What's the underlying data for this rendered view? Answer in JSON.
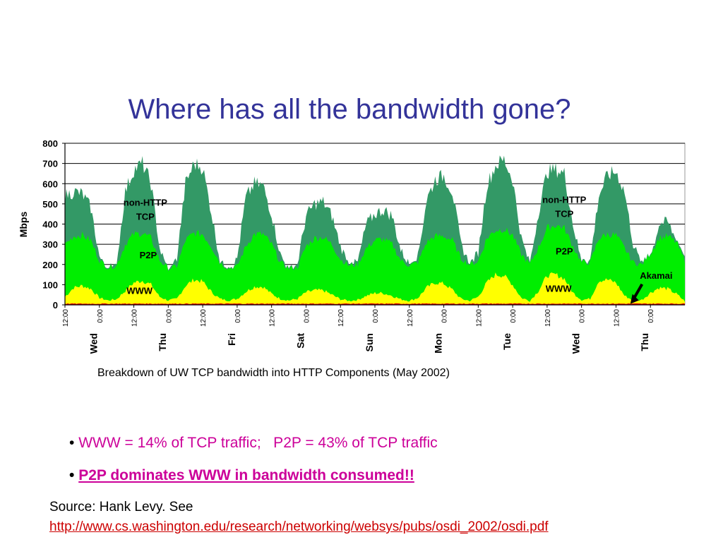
{
  "slide": {
    "title": "Where has all the bandwidth gone?",
    "caption": "Breakdown of UW TCP bandwidth into HTTP Components (May 2002)",
    "bullets": [
      "WWW = 14% of TCP traffic;   P2P = 43% of TCP traffic",
      "P2P dominates WWW in bandwidth consumed!!"
    ],
    "bullet_marker": "•",
    "source_text": "Source: Hank Levy.  See",
    "source_url": "http://www.cs.washington.edu/research/networking/websys/pubs/osdi_2002/osdi.pdf"
  },
  "chart_data": {
    "type": "area",
    "stacked": true,
    "ylabel": "Mbps",
    "ylim": [
      0,
      800
    ],
    "yticks": [
      0,
      100,
      200,
      300,
      400,
      500,
      600,
      700,
      800
    ],
    "grid": true,
    "xlim_hours": [
      0,
      216
    ],
    "x_tick_labels": [
      "12:00",
      "0:00",
      "12:00",
      "0:00",
      "12:00",
      "0:00",
      "12:00",
      "0:00",
      "12:00",
      "0:00",
      "12:00",
      "0:00",
      "12:00",
      "0:00",
      "12:00",
      "0:00",
      "12:00",
      "0:00"
    ],
    "day_labels": [
      "Wed",
      "Thu",
      "Fri",
      "Sat",
      "Sun",
      "Mon",
      "Tue",
      "Wed",
      "Thu"
    ],
    "colors": {
      "Akamai": "#dd0000",
      "WWW": "#ffff00",
      "P2P": "#00ee00",
      "non-HTTP TCP": "#339966"
    },
    "series_order": [
      "Akamai",
      "WWW",
      "P2P",
      "non-HTTP TCP"
    ],
    "hours": [
      0,
      3,
      6,
      9,
      12,
      15,
      18,
      21,
      24,
      27,
      30,
      33,
      36,
      39,
      42,
      45,
      48,
      51,
      54,
      57,
      60,
      63,
      66,
      69,
      72,
      75,
      78,
      81,
      84,
      87,
      90,
      93,
      96,
      99,
      102,
      105,
      108,
      111,
      114,
      117,
      120,
      123,
      126,
      129,
      132,
      135,
      138,
      141,
      144,
      147,
      150,
      153,
      156,
      159,
      162,
      165,
      168,
      171,
      174,
      177,
      180,
      183,
      186,
      189,
      192,
      195,
      198,
      201,
      204,
      207,
      210,
      213,
      216
    ],
    "stack_www_top": [
      40,
      85,
      95,
      80,
      35,
      22,
      28,
      70,
      110,
      120,
      100,
      40,
      22,
      30,
      95,
      125,
      115,
      65,
      30,
      22,
      30,
      65,
      90,
      90,
      55,
      30,
      22,
      30,
      62,
      72,
      72,
      50,
      28,
      20,
      25,
      45,
      58,
      58,
      45,
      28,
      20,
      35,
      85,
      110,
      105,
      75,
      30,
      20,
      40,
      110,
      150,
      145,
      100,
      35,
      20,
      70,
      145,
      150,
      130,
      60,
      25,
      30,
      120,
      125,
      110,
      45,
      22,
      25,
      60,
      85,
      80,
      55,
      18
    ],
    "stack_p2p_top": [
      300,
      340,
      345,
      320,
      220,
      185,
      195,
      300,
      350,
      355,
      330,
      220,
      180,
      190,
      320,
      355,
      350,
      290,
      210,
      180,
      190,
      290,
      350,
      350,
      300,
      210,
      180,
      185,
      290,
      330,
      335,
      300,
      225,
      195,
      200,
      280,
      320,
      325,
      300,
      220,
      195,
      210,
      310,
      340,
      340,
      320,
      230,
      200,
      215,
      330,
      370,
      375,
      345,
      250,
      200,
      285,
      380,
      395,
      380,
      290,
      210,
      210,
      330,
      350,
      345,
      280,
      210,
      200,
      255,
      330,
      340,
      310,
      220
    ],
    "stack_tcp_top": [
      540,
      560,
      550,
      480,
      240,
      150,
      200,
      560,
      670,
      700,
      600,
      280,
      160,
      230,
      600,
      700,
      680,
      460,
      220,
      160,
      230,
      530,
      600,
      590,
      450,
      250,
      170,
      200,
      440,
      500,
      510,
      440,
      290,
      200,
      210,
      400,
      450,
      470,
      440,
      270,
      200,
      240,
      520,
      620,
      640,
      560,
      300,
      200,
      260,
      590,
      690,
      720,
      620,
      330,
      200,
      460,
      660,
      670,
      650,
      400,
      210,
      220,
      540,
      640,
      660,
      560,
      300,
      200,
      230,
      400,
      410,
      320,
      240
    ],
    "annotations": [
      {
        "text": "non-HTTP TCP",
        "lines": [
          "non-HTTP",
          "TCP"
        ],
        "x_hours": 28,
        "y": 490
      },
      {
        "text": "P2P",
        "x_hours": 29,
        "y": 230
      },
      {
        "text": "WWW",
        "x_hours": 26,
        "y": 55
      },
      {
        "text": "non-HTTP TCP",
        "lines": [
          "non-HTTP",
          "TCP"
        ],
        "x_hours": 174,
        "y": 505
      },
      {
        "text": "P2P",
        "x_hours": 174,
        "y": 250
      },
      {
        "text": "WWW",
        "x_hours": 172,
        "y": 65
      },
      {
        "text": "Akamai",
        "x_hours": 206,
        "y": 130,
        "arrow_to_hours": 197,
        "arrow_to_y": 5
      }
    ]
  }
}
